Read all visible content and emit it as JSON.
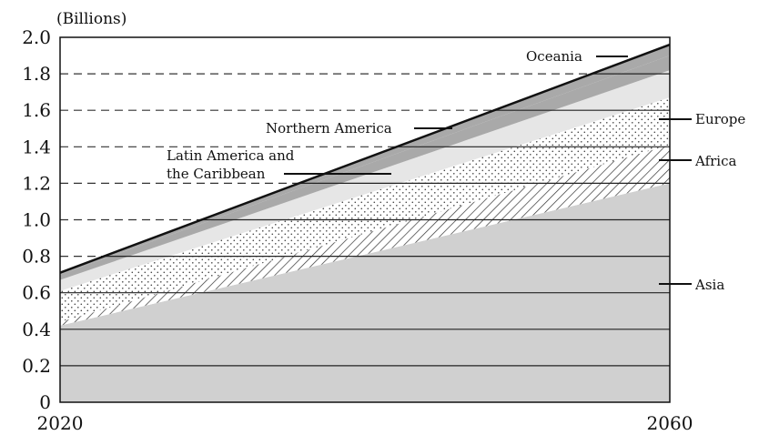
{
  "chart_data": {
    "type": "area",
    "stacked": true,
    "title": "",
    "ylabel": "(Billions)",
    "xlabel": "",
    "x": [
      2020,
      2060
    ],
    "x_tick_labels": [
      "2020",
      "2060"
    ],
    "ylim": [
      0,
      2.0
    ],
    "y_ticks": [
      "0",
      "0.2",
      "0.4",
      "0.6",
      "0.8",
      "1.0",
      "1.2",
      "1.4",
      "1.6",
      "1.8",
      "2.0"
    ],
    "grid": "horizontal",
    "series": [
      {
        "name": "Asia",
        "values": [
          0.42,
          1.2
        ],
        "fill": "#d0d0d0",
        "pattern": "solid"
      },
      {
        "name": "Africa",
        "values": [
          0.02,
          0.21
        ],
        "fill": "#ffffff",
        "pattern": "diagonal-hatch"
      },
      {
        "name": "Europe",
        "values": [
          0.17,
          0.26
        ],
        "fill": "#ffffff",
        "pattern": "dots"
      },
      {
        "name": "Latin America and the Caribbean",
        "values": [
          0.06,
          0.15
        ],
        "fill": "#e6e6e6",
        "pattern": "solid"
      },
      {
        "name": "Northern America",
        "values": [
          0.03,
          0.08
        ],
        "fill": "#a9a9a9",
        "pattern": "solid"
      },
      {
        "name": "Oceania",
        "values": [
          0.01,
          0.06
        ],
        "fill": "#a9a9a9",
        "pattern": "solid"
      }
    ],
    "labels": {
      "oceania": "Oceania",
      "northern_america": "Northern America",
      "latin_line1": "Latin America and",
      "latin_line2": "the Caribbean",
      "europe": "Europe",
      "africa": "Africa",
      "asia": "Asia"
    }
  }
}
